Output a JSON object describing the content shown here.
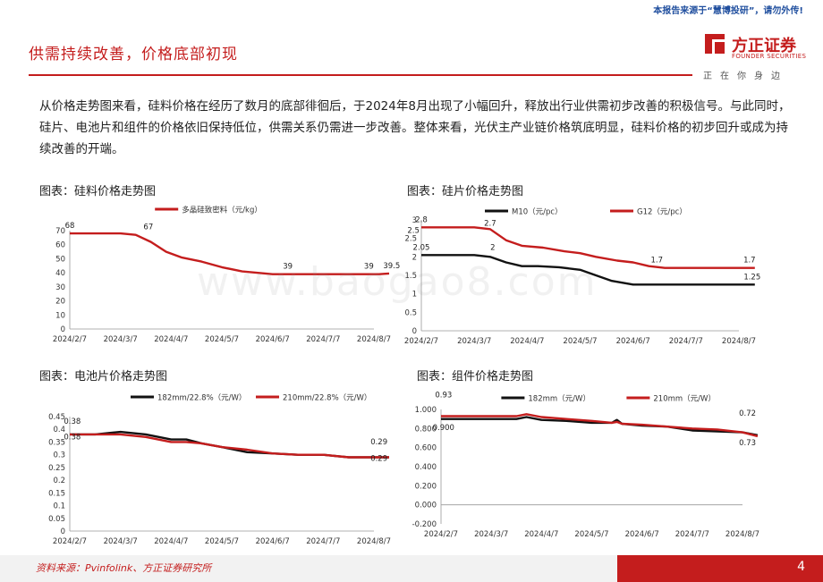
{
  "header": {
    "top_note": "本报告来源于“慧博投研”，请勿外传!",
    "title": "供需持续改善，价格底部初现"
  },
  "logo": {
    "name_cn": "方正证券",
    "name_en": "FOUNDER SECURITIES",
    "slogan": "正在你身边",
    "brand_color": "#c41d1d"
  },
  "body": {
    "paragraph": "从价格走势图来看，硅料价格在经历了数月的底部徘徊后，于2024年8月出现了小幅回升，释放出行业供需初步改善的积极信号。与此同时，硅片、电池片和组件的价格依旧保持低位，供需关系仍需进一步改善。整体来看，光伏主产业链价格筑底明显，硅料价格的初步回升或成为持续改善的开端。"
  },
  "footer": {
    "source": "资料来源：Pvinfolink、方正证券研究所",
    "page": "4"
  },
  "watermark": "www.baogao8.com",
  "chart_data": [
    {
      "id": "silicon",
      "caption": "图表：硅料价格走势图",
      "type": "line",
      "x_ticks": [
        "2024/2/7",
        "2024/3/7",
        "2024/4/7",
        "2024/5/7",
        "2024/6/7",
        "2024/7/7",
        "2024/8/7"
      ],
      "ylim": [
        0,
        70
      ],
      "y_ticks": [
        0,
        10,
        20,
        30,
        40,
        50,
        60,
        70
      ],
      "y_tick_labels": [
        "0",
        "10",
        "20",
        "30",
        "40",
        "50",
        "60",
        "70"
      ],
      "series": [
        {
          "name": "多晶硅致密料（元/kg）",
          "color": "#c41d1d",
          "x": [
            0,
            0.5,
            1.0,
            1.3,
            1.6,
            1.9,
            2.2,
            2.6,
            3.0,
            3.4,
            4.0,
            5.0,
            6.0,
            6.1,
            6.3
          ],
          "y": [
            68,
            68,
            68,
            67,
            62,
            55,
            51,
            48,
            44,
            41,
            39,
            39,
            39,
            39,
            39.5
          ]
        }
      ],
      "annotations": [
        {
          "text": "68",
          "x": 0,
          "y": 68
        },
        {
          "text": "67",
          "x": 1.55,
          "y": 67
        },
        {
          "text": "39",
          "x": 4.3,
          "y": 39
        },
        {
          "text": "39",
          "x": 5.9,
          "y": 39
        },
        {
          "text": "39.5",
          "x": 6.35,
          "y": 39.5
        }
      ]
    },
    {
      "id": "wafer",
      "caption": "图表：硅片价格走势图",
      "type": "line",
      "x_ticks": [
        "2024/2/7",
        "2024/3/7",
        "2024/4/7",
        "2024/5/7",
        "2024/6/7",
        "2024/7/7",
        "2024/8/7"
      ],
      "ylim": [
        0,
        3
      ],
      "y_ticks": [
        0,
        0.5,
        1,
        1.5,
        2,
        2.5,
        3
      ],
      "y_tick_labels": [
        "0",
        "0.5",
        "1",
        "1.5",
        "2",
        "2.5",
        "3"
      ],
      "series": [
        {
          "name": "M10（元/pc）",
          "color": "#111111",
          "x": [
            0,
            0.5,
            1.0,
            1.3,
            1.6,
            1.9,
            2.2,
            2.6,
            3.0,
            3.3,
            3.6,
            4.0,
            4.5,
            5.0,
            6.0,
            6.3
          ],
          "y": [
            2.05,
            2.05,
            2.05,
            2.0,
            1.85,
            1.75,
            1.75,
            1.72,
            1.65,
            1.5,
            1.35,
            1.25,
            1.25,
            1.25,
            1.25,
            1.25
          ]
        },
        {
          "name": "G12（元/pc）",
          "color": "#c41d1d",
          "x": [
            0,
            0.5,
            1.0,
            1.3,
            1.6,
            1.9,
            2.3,
            2.7,
            3.0,
            3.3,
            3.7,
            4.0,
            4.3,
            4.6,
            5.0,
            6.0,
            6.3
          ],
          "y": [
            2.8,
            2.8,
            2.8,
            2.75,
            2.45,
            2.3,
            2.25,
            2.15,
            2.1,
            2.0,
            1.9,
            1.85,
            1.75,
            1.7,
            1.7,
            1.7,
            1.7
          ]
        }
      ],
      "annotations": [
        {
          "text": "2.8",
          "x": 0,
          "y": 2.8
        },
        {
          "text": "2.7",
          "x": 1.3,
          "y": 2.7
        },
        {
          "text": "2.5",
          "x": -0.15,
          "y": 2.5
        },
        {
          "text": "2.05",
          "x": 0,
          "y": 2.05
        },
        {
          "text": "2",
          "x": 1.35,
          "y": 2.05
        },
        {
          "text": "1.7",
          "x": 4.45,
          "y": 1.7
        },
        {
          "text": "1.7",
          "x": 6.2,
          "y": 1.7
        },
        {
          "text": "1.25",
          "x": 6.25,
          "y": 1.25
        }
      ]
    },
    {
      "id": "cell",
      "caption": "图表：电池片价格走势图",
      "type": "line",
      "x_ticks": [
        "2024/2/7",
        "2024/3/7",
        "2024/4/7",
        "2024/5/7",
        "2024/6/7",
        "2024/7/7",
        "2024/8/7"
      ],
      "ylim": [
        0,
        0.45
      ],
      "y_ticks": [
        0,
        0.05,
        0.1,
        0.15,
        0.2,
        0.25,
        0.3,
        0.35,
        0.4,
        0.45
      ],
      "y_tick_labels": [
        "0",
        "0.05",
        "0.1",
        "0.15",
        "0.2",
        "0.25",
        "0.3",
        "0.35",
        "0.4",
        "0.45"
      ],
      "series": [
        {
          "name": "182mm/22.8%（元/W）",
          "color": "#111111",
          "x": [
            0,
            0.5,
            1.0,
            1.5,
            2.0,
            2.3,
            2.6,
            3.0,
            3.5,
            4.0,
            4.5,
            5.0,
            5.5,
            6.0,
            6.3
          ],
          "y": [
            0.38,
            0.38,
            0.39,
            0.38,
            0.36,
            0.36,
            0.345,
            0.33,
            0.31,
            0.305,
            0.3,
            0.3,
            0.29,
            0.29,
            0.29
          ]
        },
        {
          "name": "210mm/22.8%（元/W）",
          "color": "#c41d1d",
          "x": [
            0,
            0.5,
            1.0,
            1.5,
            2.0,
            2.3,
            2.6,
            3.0,
            3.5,
            4.0,
            4.5,
            5.0,
            5.5,
            6.0,
            6.3
          ],
          "y": [
            0.38,
            0.38,
            0.38,
            0.37,
            0.35,
            0.35,
            0.345,
            0.33,
            0.32,
            0.305,
            0.3,
            0.3,
            0.29,
            0.29,
            0.29
          ]
        }
      ],
      "annotations": [
        {
          "text": "0.38",
          "x": 0.05,
          "y": 0.4
        },
        {
          "text": "0.38",
          "x": 0.05,
          "y": 0.34
        },
        {
          "text": "0.29",
          "x": 6.1,
          "y": 0.32
        },
        {
          "text": "0.29",
          "x": 6.1,
          "y": 0.255
        }
      ]
    },
    {
      "id": "module",
      "caption": "图表：组件价格走势图",
      "type": "line",
      "x_ticks": [
        "2024/2/7",
        "2024/3/7",
        "2024/4/7",
        "2024/5/7",
        "2024/6/7",
        "2024/7/7",
        "2024/8/7"
      ],
      "ylim": [
        -0.2,
        1.0
      ],
      "y_ticks": [
        -0.2,
        0,
        0.2,
        0.4,
        0.6,
        0.8,
        1.0
      ],
      "y_tick_labels": [
        "-0.200",
        "0.000",
        "0.200",
        "0.400",
        "0.600",
        "0.800",
        "1.000"
      ],
      "series": [
        {
          "name": "182mm（元/W）",
          "color": "#111111",
          "x": [
            0,
            0.5,
            1.0,
            1.5,
            1.7,
            2.0,
            2.5,
            3.0,
            3.4,
            3.5,
            3.6,
            4.0,
            4.5,
            5.0,
            5.5,
            6.0,
            6.3
          ],
          "y": [
            0.9,
            0.9,
            0.9,
            0.9,
            0.92,
            0.89,
            0.88,
            0.86,
            0.86,
            0.89,
            0.85,
            0.83,
            0.82,
            0.78,
            0.77,
            0.76,
            0.73
          ]
        },
        {
          "name": "210mm（元/W）",
          "color": "#c41d1d",
          "x": [
            0,
            0.5,
            1.0,
            1.5,
            1.7,
            2.0,
            2.5,
            3.0,
            3.4,
            3.5,
            3.6,
            4.0,
            4.5,
            5.0,
            5.5,
            6.0,
            6.3
          ],
          "y": [
            0.93,
            0.93,
            0.93,
            0.93,
            0.95,
            0.92,
            0.9,
            0.88,
            0.86,
            0.87,
            0.85,
            0.84,
            0.82,
            0.8,
            0.79,
            0.76,
            0.72
          ]
        }
      ],
      "annotations": [
        {
          "text": "0.93",
          "x": 0.05,
          "y": 1.07
        },
        {
          "text": "0.900",
          "x": 0.05,
          "y": 0.73
        },
        {
          "text": "0.72",
          "x": 6.1,
          "y": 0.88
        },
        {
          "text": "0.73",
          "x": 6.1,
          "y": 0.57
        }
      ]
    }
  ]
}
